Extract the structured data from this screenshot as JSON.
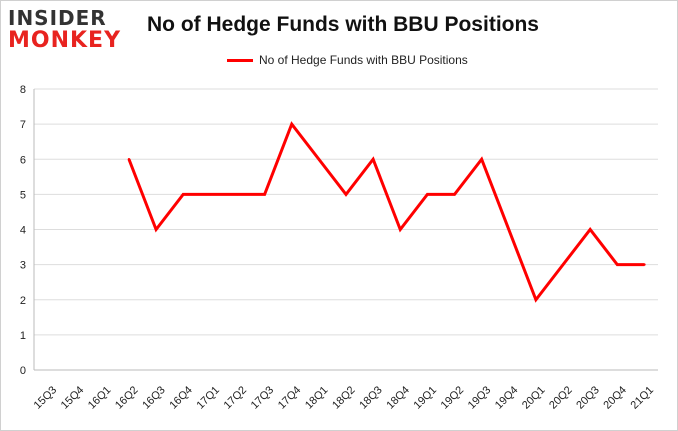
{
  "logo": {
    "line1": "INSIDER",
    "line2": "MONKEY"
  },
  "chart_data": {
    "type": "line",
    "title": "No of Hedge Funds with BBU Positions",
    "xlabel": "",
    "ylabel": "",
    "categories": [
      "15Q3",
      "15Q4",
      "16Q1",
      "16Q2",
      "16Q3",
      "16Q4",
      "17Q1",
      "17Q2",
      "17Q3",
      "17Q4",
      "18Q1",
      "18Q2",
      "18Q3",
      "18Q4",
      "19Q1",
      "19Q2",
      "19Q3",
      "19Q4",
      "20Q1",
      "20Q2",
      "20Q3",
      "20Q4",
      "21Q1"
    ],
    "series": [
      {
        "name": "No of Hedge Funds with BBU Positions",
        "color": "#ff0000",
        "values": [
          null,
          null,
          null,
          6,
          4,
          5,
          5,
          5,
          5,
          7,
          6,
          5,
          6,
          4,
          5,
          5,
          6,
          4,
          2,
          3,
          4,
          3,
          3
        ]
      }
    ],
    "ylim": [
      0,
      8
    ],
    "yticks": [
      0,
      1,
      2,
      3,
      4,
      5,
      6,
      7,
      8
    ],
    "grid": true,
    "legend": "top-center"
  }
}
